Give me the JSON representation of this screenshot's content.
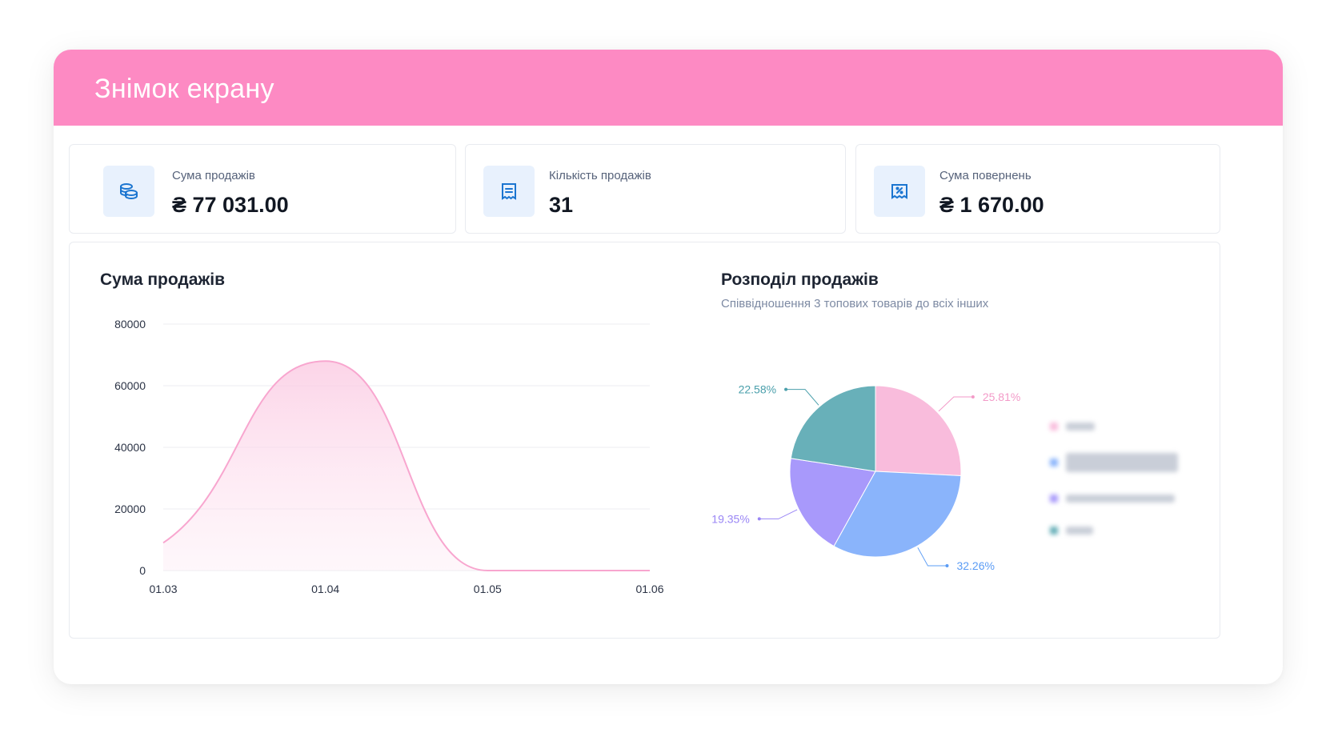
{
  "window": {
    "title": "Знімок екрану",
    "accent_color": "#fd8ac3"
  },
  "stats": [
    {
      "label": "Сума продажів",
      "value": "₴ 77 031.00",
      "icon": "coins-icon"
    },
    {
      "label": "Кількість продажів",
      "value": "31",
      "icon": "receipt-list-icon"
    },
    {
      "label": "Сума повернень",
      "value": "₴ 1 670.00",
      "icon": "refund-receipt-icon"
    }
  ],
  "line_chart": {
    "title": "Сума продажів"
  },
  "pie_chart": {
    "title": "Розподіл продажів",
    "subtitle": "Співвідношення 3 топових товарів до всіх інших"
  },
  "chart_data": [
    {
      "type": "area",
      "title": "Сума продажів",
      "categories": [
        "01.03",
        "01.04",
        "01.05",
        "01.06"
      ],
      "values": [
        9000,
        68000,
        0,
        0
      ],
      "y_ticks": [
        "80000",
        "60000",
        "40000",
        "20000",
        "0"
      ],
      "ylim": [
        0,
        80000
      ],
      "grid": true,
      "color": "#f8a6cf"
    },
    {
      "type": "pie",
      "title": "Розподіл продажів",
      "slices": [
        {
          "label": "25.81%",
          "value": 25.81,
          "color": "#f9bcdc",
          "label_color": "#f39ac8"
        },
        {
          "label": "32.26%",
          "value": 32.26,
          "color": "#8ab4fb",
          "label_color": "#5b9cf5"
        },
        {
          "label": "19.35%",
          "value": 19.35,
          "color": "#a899fb",
          "label_color": "#9a86f5"
        },
        {
          "label": "22.58%",
          "value": 22.58,
          "color": "#68b0b9",
          "label_color": "#4a9fab"
        }
      ],
      "legend_placement": "right",
      "legend_blurred": true
    }
  ]
}
